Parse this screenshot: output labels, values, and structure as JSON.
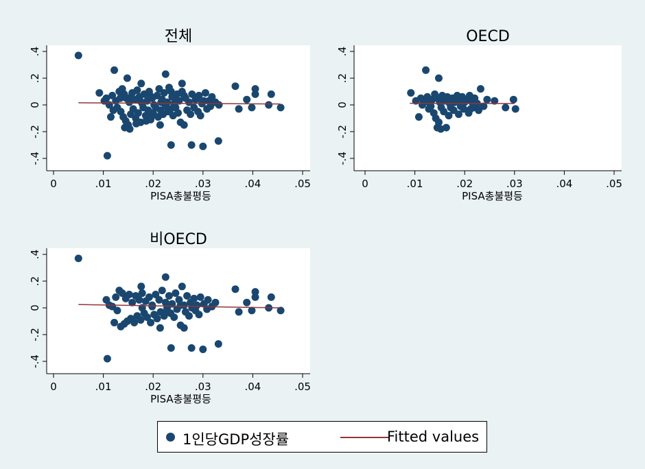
{
  "chart_data": [
    {
      "type": "scatter",
      "title": "전체",
      "xlabel": "PISA총불평등",
      "ylabel": "",
      "xlim": [
        0,
        0.05
      ],
      "ylim": [
        -0.4,
        0.4
      ],
      "xticks": [
        "0",
        ".01",
        ".02",
        ".03",
        ".04",
        ".05"
      ],
      "yticks": [
        "-.4",
        "-.2",
        "0",
        ".2",
        ".4"
      ],
      "fit": {
        "x": [
          0.005,
          0.0455
        ],
        "y": [
          0.016,
          0.007
        ]
      },
      "points": [
        [
          0.005,
          0.37
        ],
        [
          0.0108,
          -0.38
        ],
        [
          0.0122,
          0.26
        ],
        [
          0.0225,
          0.23
        ],
        [
          0.0258,
          0.16
        ],
        [
          0.0148,
          0.2
        ],
        [
          0.0176,
          0.16
        ],
        [
          0.0236,
          -0.3
        ],
        [
          0.0277,
          -0.3
        ],
        [
          0.03,
          -0.31
        ],
        [
          0.0331,
          -0.27
        ],
        [
          0.0214,
          -0.15
        ],
        [
          0.0255,
          -0.13
        ],
        [
          0.0262,
          -0.15
        ],
        [
          0.0405,
          0.12
        ],
        [
          0.0405,
          0.08
        ],
        [
          0.0365,
          0.14
        ],
        [
          0.0437,
          0.08
        ],
        [
          0.0388,
          0.04
        ],
        [
          0.0456,
          -0.02
        ],
        [
          0.0432,
          0.0
        ],
        [
          0.0398,
          -0.02
        ],
        [
          0.0372,
          -0.03
        ],
        [
          0.0092,
          0.09
        ],
        [
          0.0102,
          0.03
        ],
        [
          0.0106,
          0.05
        ],
        [
          0.0118,
          0.07
        ],
        [
          0.0125,
          0.03
        ],
        [
          0.0132,
          0.1
        ],
        [
          0.0138,
          0.12
        ],
        [
          0.0142,
          0.08
        ],
        [
          0.0146,
          0.05
        ],
        [
          0.0152,
          0.02
        ],
        [
          0.0158,
          0.09
        ],
        [
          0.0162,
          0.04
        ],
        [
          0.0168,
          0.11
        ],
        [
          0.0172,
          0.06
        ],
        [
          0.0178,
          0.01
        ],
        [
          0.0182,
          0.08
        ],
        [
          0.0188,
          0.03
        ],
        [
          0.0192,
          0.1
        ],
        [
          0.0198,
          0.05
        ],
        [
          0.0202,
          0.0
        ],
        [
          0.0208,
          0.07
        ],
        [
          0.0212,
          0.12
        ],
        [
          0.0218,
          0.04
        ],
        [
          0.0222,
          0.09
        ],
        [
          0.0228,
          0.02
        ],
        [
          0.0232,
          0.13
        ],
        [
          0.0238,
          0.06
        ],
        [
          0.0242,
          0.01
        ],
        [
          0.0248,
          0.08
        ],
        [
          0.0252,
          0.03
        ],
        [
          0.0258,
          0.1
        ],
        [
          0.0265,
          0.05
        ],
        [
          0.0272,
          0.02
        ],
        [
          0.0278,
          0.08
        ],
        [
          0.0285,
          0.04
        ],
        [
          0.0292,
          0.07
        ],
        [
          0.0298,
          0.01
        ],
        [
          0.0305,
          0.09
        ],
        [
          0.0312,
          0.03
        ],
        [
          0.0318,
          0.06
        ],
        [
          0.0325,
          0.02
        ],
        [
          0.0332,
          0.0
        ],
        [
          0.0128,
          -0.02
        ],
        [
          0.0135,
          -0.05
        ],
        [
          0.014,
          -0.09
        ],
        [
          0.0145,
          -0.12
        ],
        [
          0.015,
          -0.15
        ],
        [
          0.0155,
          -0.07
        ],
        [
          0.016,
          -0.03
        ],
        [
          0.0165,
          -0.1
        ],
        [
          0.017,
          -0.06
        ],
        [
          0.0175,
          -0.13
        ],
        [
          0.018,
          -0.02
        ],
        [
          0.0185,
          -0.08
        ],
        [
          0.019,
          -0.04
        ],
        [
          0.0195,
          -0.11
        ],
        [
          0.02,
          -0.06
        ],
        [
          0.0205,
          -0.02
        ],
        [
          0.021,
          -0.09
        ],
        [
          0.0215,
          -0.04
        ],
        [
          0.022,
          -0.07
        ],
        [
          0.0225,
          -0.01
        ],
        [
          0.023,
          -0.05
        ],
        [
          0.0235,
          -0.03
        ],
        [
          0.024,
          -0.08
        ],
        [
          0.0245,
          -0.02
        ],
        [
          0.025,
          -0.06
        ],
        [
          0.0268,
          -0.04
        ],
        [
          0.0275,
          -0.07
        ],
        [
          0.0282,
          -0.02
        ],
        [
          0.029,
          -0.05
        ],
        [
          0.0295,
          -0.08
        ],
        [
          0.0308,
          -0.03
        ],
        [
          0.0315,
          -0.01
        ],
        [
          0.0112,
          0.0
        ],
        [
          0.0115,
          -0.09
        ],
        [
          0.012,
          -0.04
        ],
        [
          0.0143,
          -0.17
        ],
        [
          0.0153,
          -0.18
        ],
        [
          0.0166,
          -0.14
        ],
        [
          0.0186,
          -0.12
        ],
        [
          0.0196,
          -0.09
        ],
        [
          0.0134,
          0.05
        ],
        [
          0.0156,
          0.06
        ],
        [
          0.0174,
          0.03
        ],
        [
          0.0194,
          0.07
        ],
        [
          0.0216,
          0.02
        ],
        [
          0.0236,
          0.1
        ],
        [
          0.0246,
          0.04
        ],
        [
          0.0262,
          0.07
        ],
        [
          0.0288,
          0.05
        ],
        [
          0.0302,
          0.03
        ]
      ]
    },
    {
      "type": "scatter",
      "title": "OECD",
      "xlabel": "PISA총불평등",
      "ylabel": "",
      "xlim": [
        0,
        0.05
      ],
      "ylim": [
        -0.4,
        0.4
      ],
      "xticks": [
        "0",
        ".01",
        ".02",
        ".03",
        ".04",
        ".05"
      ],
      "yticks": [
        "-.4",
        "-.2",
        "0",
        ".2",
        ".4"
      ],
      "fit": {
        "x": [
          0.009,
          0.03
        ],
        "y": [
          0.012,
          0.01
        ]
      },
      "points": [
        [
          0.0122,
          0.26
        ],
        [
          0.0148,
          0.2
        ],
        [
          0.0092,
          0.09
        ],
        [
          0.0298,
          0.04
        ],
        [
          0.0302,
          -0.03
        ],
        [
          0.0282,
          -0.02
        ],
        [
          0.0232,
          0.12
        ],
        [
          0.0145,
          -0.17
        ],
        [
          0.0152,
          -0.18
        ],
        [
          0.0163,
          -0.17
        ],
        [
          0.0108,
          -0.09
        ],
        [
          0.0102,
          0.03
        ],
        [
          0.0112,
          0.05
        ],
        [
          0.0118,
          0.02
        ],
        [
          0.0125,
          0.06
        ],
        [
          0.013,
          0.01
        ],
        [
          0.0135,
          0.04
        ],
        [
          0.014,
          0.08
        ],
        [
          0.0145,
          0.05
        ],
        [
          0.015,
          0.02
        ],
        [
          0.0155,
          0.07
        ],
        [
          0.016,
          0.03
        ],
        [
          0.0165,
          0.06
        ],
        [
          0.017,
          0.01
        ],
        [
          0.0175,
          0.05
        ],
        [
          0.018,
          0.02
        ],
        [
          0.0185,
          0.07
        ],
        [
          0.019,
          0.03
        ],
        [
          0.0195,
          0.06
        ],
        [
          0.02,
          0.02
        ],
        [
          0.0205,
          0.04
        ],
        [
          0.021,
          0.07
        ],
        [
          0.0215,
          0.02
        ],
        [
          0.022,
          0.05
        ],
        [
          0.0225,
          0.01
        ],
        [
          0.0245,
          0.04
        ],
        [
          0.026,
          0.03
        ],
        [
          0.0128,
          -0.03
        ],
        [
          0.0138,
          -0.06
        ],
        [
          0.0142,
          -0.1
        ],
        [
          0.0148,
          -0.13
        ],
        [
          0.0158,
          -0.05
        ],
        [
          0.0168,
          -0.08
        ],
        [
          0.0178,
          -0.04
        ],
        [
          0.0188,
          -0.07
        ],
        [
          0.0198,
          -0.03
        ],
        [
          0.0208,
          -0.06
        ],
        [
          0.0218,
          -0.02
        ],
        [
          0.0228,
          -0.04
        ],
        [
          0.0238,
          -0.01
        ],
        [
          0.0132,
          -0.01
        ],
        [
          0.0153,
          -0.02
        ],
        [
          0.0172,
          -0.02
        ],
        [
          0.0192,
          -0.01
        ],
        [
          0.0212,
          -0.03
        ],
        [
          0.0115,
          0.0
        ]
      ]
    },
    {
      "type": "scatter",
      "title": "비OECD",
      "xlabel": "PISA총불평등",
      "ylabel": "",
      "xlim": [
        0,
        0.05
      ],
      "ylim": [
        -0.4,
        0.4
      ],
      "xticks": [
        "0",
        ".01",
        ".02",
        ".03",
        ".04",
        ".05"
      ],
      "yticks": [
        "-.4",
        "-.2",
        "0",
        ".2",
        ".4"
      ],
      "fit": {
        "x": [
          0.005,
          0.0455
        ],
        "y": [
          0.025,
          0.0
        ]
      },
      "points": [
        [
          0.005,
          0.37
        ],
        [
          0.0108,
          -0.38
        ],
        [
          0.0225,
          0.23
        ],
        [
          0.0258,
          0.16
        ],
        [
          0.0176,
          0.16
        ],
        [
          0.0236,
          -0.3
        ],
        [
          0.0277,
          -0.3
        ],
        [
          0.03,
          -0.31
        ],
        [
          0.0331,
          -0.27
        ],
        [
          0.0214,
          -0.15
        ],
        [
          0.0255,
          -0.13
        ],
        [
          0.0262,
          -0.15
        ],
        [
          0.0405,
          0.12
        ],
        [
          0.0405,
          0.08
        ],
        [
          0.0365,
          0.14
        ],
        [
          0.0437,
          0.08
        ],
        [
          0.0388,
          0.04
        ],
        [
          0.0456,
          -0.02
        ],
        [
          0.0432,
          0.0
        ],
        [
          0.0398,
          -0.02
        ],
        [
          0.0372,
          -0.03
        ],
        [
          0.0106,
          0.06
        ],
        [
          0.0112,
          0.02
        ],
        [
          0.0125,
          0.08
        ],
        [
          0.0132,
          0.13
        ],
        [
          0.0138,
          0.11
        ],
        [
          0.0145,
          0.07
        ],
        [
          0.0152,
          0.1
        ],
        [
          0.0158,
          0.04
        ],
        [
          0.0165,
          0.09
        ],
        [
          0.0172,
          0.06
        ],
        [
          0.0178,
          0.11
        ],
        [
          0.0185,
          0.05
        ],
        [
          0.0192,
          0.08
        ],
        [
          0.0198,
          0.02
        ],
        [
          0.0205,
          0.1
        ],
        [
          0.0212,
          0.06
        ],
        [
          0.0218,
          0.13
        ],
        [
          0.0225,
          0.04
        ],
        [
          0.0232,
          0.09
        ],
        [
          0.0238,
          0.03
        ],
        [
          0.0245,
          0.11
        ],
        [
          0.0252,
          0.06
        ],
        [
          0.0262,
          0.02
        ],
        [
          0.0268,
          0.09
        ],
        [
          0.0275,
          0.04
        ],
        [
          0.0282,
          0.07
        ],
        [
          0.0288,
          0.02
        ],
        [
          0.0295,
          0.08
        ],
        [
          0.0302,
          0.03
        ],
        [
          0.031,
          0.06
        ],
        [
          0.0318,
          0.01
        ],
        [
          0.0325,
          0.04
        ],
        [
          0.0122,
          -0.11
        ],
        [
          0.0135,
          -0.14
        ],
        [
          0.0142,
          -0.12
        ],
        [
          0.0148,
          -0.1
        ],
        [
          0.0155,
          -0.08
        ],
        [
          0.0162,
          -0.11
        ],
        [
          0.0168,
          -0.06
        ],
        [
          0.0175,
          -0.09
        ],
        [
          0.0182,
          -0.04
        ],
        [
          0.0188,
          -0.07
        ],
        [
          0.0195,
          -0.11
        ],
        [
          0.0202,
          -0.05
        ],
        [
          0.0208,
          -0.08
        ],
        [
          0.0215,
          -0.03
        ],
        [
          0.0222,
          -0.06
        ],
        [
          0.0228,
          -0.02
        ],
        [
          0.0235,
          -0.04
        ],
        [
          0.0242,
          -0.07
        ],
        [
          0.0248,
          -0.01
        ],
        [
          0.0265,
          -0.03
        ],
        [
          0.0272,
          -0.06
        ],
        [
          0.0285,
          -0.02
        ],
        [
          0.0292,
          -0.05
        ],
        [
          0.0308,
          -0.01
        ],
        [
          0.0118,
          0.01
        ],
        [
          0.0128,
          -0.02
        ],
        [
          0.0178,
          0.0
        ],
        [
          0.0198,
          0.01
        ],
        [
          0.0228,
          0.0
        ],
        [
          0.0255,
          0.02
        ],
        [
          0.0278,
          0.0
        ]
      ]
    }
  ],
  "legend": {
    "marker_label": "1인당GDP성장률",
    "line_label": "Fitted values",
    "marker_color": "#1a476f",
    "line_color": "#90353b"
  }
}
